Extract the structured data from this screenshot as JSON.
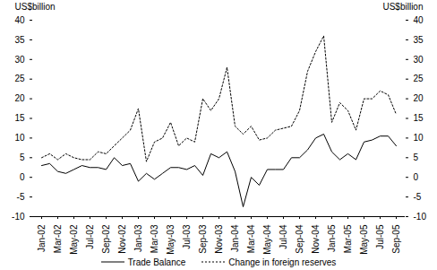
{
  "chart_data": {
    "type": "line",
    "y_label": "US$billion",
    "y2_label": "US$billion",
    "categories": [
      "Jan-02",
      null,
      "Mar-02",
      null,
      "May-02",
      null,
      "Jul-02",
      null,
      "Sep-02",
      null,
      "Nov-02",
      null,
      "Jan-03",
      null,
      "Mar-03",
      null,
      "May-03",
      null,
      "Jul-03",
      null,
      "Sep-03",
      null,
      "Nov-03",
      null,
      "Jan-04",
      null,
      "Mar-04",
      null,
      "May-04",
      null,
      "Jul-04",
      null,
      "Sep-04",
      null,
      "Nov-04",
      null,
      "Jan-05",
      null,
      "Mar-05",
      null,
      "May-05",
      null,
      "Jul-05",
      null,
      "Sep-05"
    ],
    "series": [
      {
        "name": "Trade Balance",
        "color": "#000000",
        "line_style": "solid",
        "values": [
          3,
          3.5,
          1.5,
          1,
          2,
          3,
          2.5,
          2.5,
          2,
          5,
          3,
          3.5,
          -1,
          1,
          -0.5,
          1,
          2.5,
          2.5,
          2,
          3,
          0.5,
          6,
          5,
          6.5,
          1.5,
          -7.5,
          0,
          -2,
          2,
          2,
          2,
          5,
          5,
          7,
          10,
          11,
          6.5,
          4.5,
          6,
          4.5,
          9,
          9.5,
          10.5,
          10.5,
          8
        ]
      },
      {
        "name": "Change in foreign reserves",
        "color": "#000000",
        "line_style": "dotted",
        "values": [
          5,
          6,
          4.5,
          6,
          5,
          4.5,
          4.5,
          6.5,
          6,
          8,
          10,
          12,
          17.5,
          4,
          9,
          10,
          14,
          8,
          10,
          9,
          20,
          17,
          20,
          28,
          13,
          11,
          13,
          9.5,
          10,
          12,
          12.5,
          13,
          17,
          27,
          32,
          36,
          14,
          19,
          17,
          12,
          20,
          20,
          22,
          21,
          16
        ]
      }
    ],
    "ylim": [
      -10,
      40
    ],
    "yticks": [
      -10,
      -5,
      0,
      5,
      10,
      15,
      20,
      25,
      30,
      35,
      40
    ],
    "grid": false
  }
}
